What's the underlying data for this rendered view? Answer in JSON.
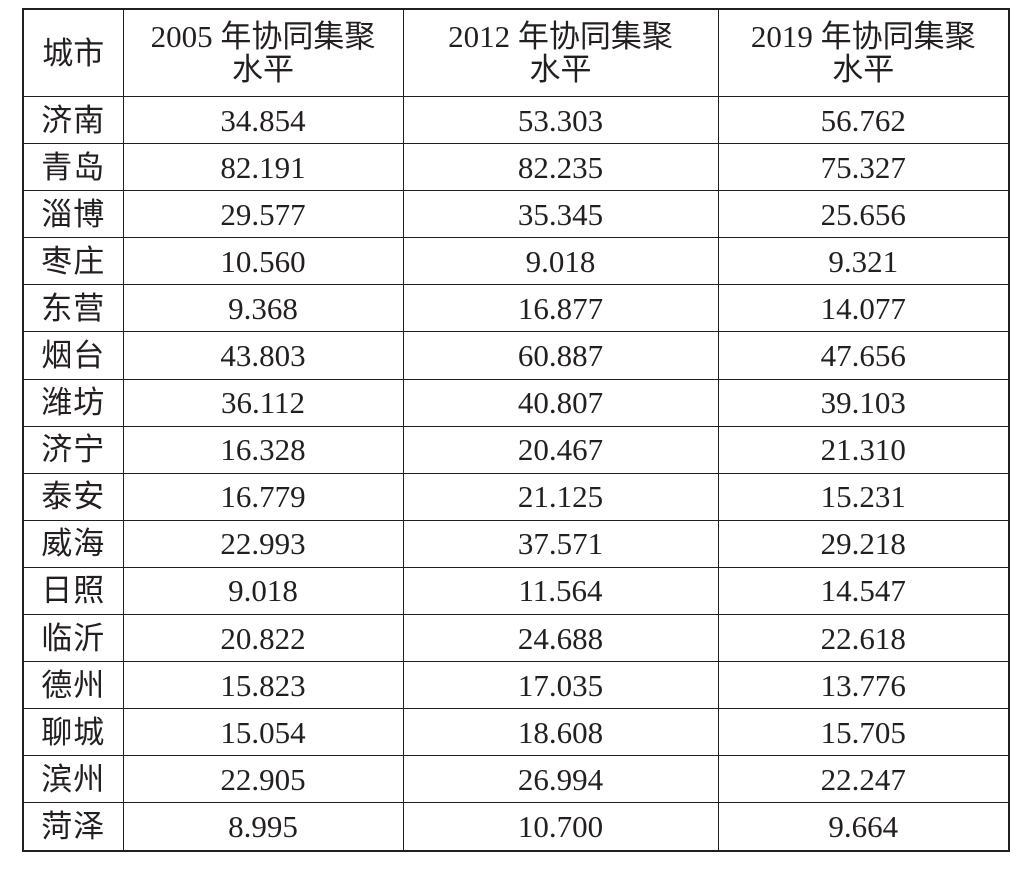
{
  "table": {
    "headers": {
      "city": "城市",
      "y2005": [
        "2005 年协同集聚",
        "水平"
      ],
      "y2012": [
        "2012 年协同集聚",
        "水平"
      ],
      "y2019": [
        "2019 年协同集聚",
        "水平"
      ]
    },
    "rows": [
      {
        "city": "济南",
        "y2005": "34.854",
        "y2012": "53.303",
        "y2019": "56.762"
      },
      {
        "city": "青岛",
        "y2005": "82.191",
        "y2012": "82.235",
        "y2019": "75.327"
      },
      {
        "city": "淄博",
        "y2005": "29.577",
        "y2012": "35.345",
        "y2019": "25.656"
      },
      {
        "city": "枣庄",
        "y2005": "10.560",
        "y2012": "9.018",
        "y2019": "9.321"
      },
      {
        "city": "东营",
        "y2005": "9.368",
        "y2012": "16.877",
        "y2019": "14.077"
      },
      {
        "city": "烟台",
        "y2005": "43.803",
        "y2012": "60.887",
        "y2019": "47.656"
      },
      {
        "city": "潍坊",
        "y2005": "36.112",
        "y2012": "40.807",
        "y2019": "39.103"
      },
      {
        "city": "济宁",
        "y2005": "16.328",
        "y2012": "20.467",
        "y2019": "21.310"
      },
      {
        "city": "泰安",
        "y2005": "16.779",
        "y2012": "21.125",
        "y2019": "15.231"
      },
      {
        "city": "威海",
        "y2005": "22.993",
        "y2012": "37.571",
        "y2019": "29.218"
      },
      {
        "city": "日照",
        "y2005": "9.018",
        "y2012": "11.564",
        "y2019": "14.547"
      },
      {
        "city": "临沂",
        "y2005": "20.822",
        "y2012": "24.688",
        "y2019": "22.618"
      },
      {
        "city": "德州",
        "y2005": "15.823",
        "y2012": "17.035",
        "y2019": "13.776"
      },
      {
        "city": "聊城",
        "y2005": "15.054",
        "y2012": "18.608",
        "y2019": "15.705"
      },
      {
        "city": "滨州",
        "y2005": "22.905",
        "y2012": "26.994",
        "y2019": "22.247"
      },
      {
        "city": "菏泽",
        "y2005": "8.995",
        "y2012": "10.700",
        "y2019": "9.664"
      }
    ]
  }
}
